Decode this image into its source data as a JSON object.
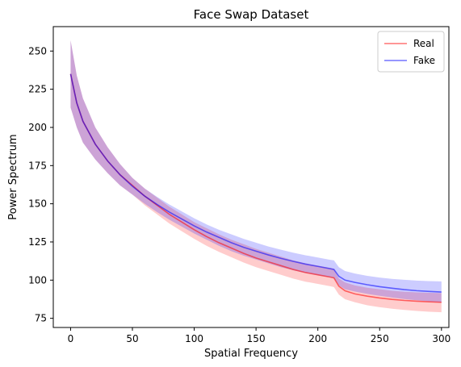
{
  "chart_data": {
    "type": "line",
    "title": "Face Swap Dataset",
    "xlabel": "Spatial Frequency",
    "ylabel": "Power Spectrum",
    "xlim": [
      -14,
      306
    ],
    "ylim": [
      69,
      266
    ],
    "xticks": [
      0,
      50,
      100,
      150,
      200,
      250,
      300
    ],
    "yticks": [
      75,
      100,
      125,
      150,
      175,
      200,
      225,
      250
    ],
    "grid": false,
    "legend_position": "top-right",
    "series": [
      {
        "name": "Real",
        "color": "#ff0000",
        "x": [
          0,
          5,
          10,
          20,
          30,
          40,
          50,
          60,
          70,
          80,
          90,
          100,
          110,
          120,
          130,
          140,
          150,
          160,
          170,
          180,
          190,
          200,
          210,
          213,
          217,
          222,
          230,
          240,
          250,
          260,
          270,
          280,
          290,
          300
        ],
        "mean": [
          235,
          216,
          204,
          189,
          178,
          169,
          162,
          155,
          149,
          143,
          138,
          133,
          128.5,
          124.5,
          121,
          117.5,
          114.5,
          112,
          109.5,
          107,
          105,
          103.5,
          102,
          101.5,
          96,
          93,
          91,
          89.5,
          88.3,
          87.4,
          86.7,
          86.2,
          85.8,
          85.5
        ],
        "upper": [
          257,
          234,
          219,
          200,
          187,
          176,
          167,
          160,
          154,
          148,
          143,
          138,
          134,
          130,
          126.5,
          123.5,
          120.5,
          118,
          115.5,
          113,
          111,
          109.5,
          108,
          107.5,
          101,
          98.5,
          96.5,
          95,
          94,
          93,
          92.4,
          92,
          91.7,
          91.5
        ],
        "lower": [
          213,
          200,
          190,
          179,
          170,
          162,
          156,
          149,
          143,
          137,
          132,
          127,
          122.5,
          118.5,
          115,
          111.5,
          108.5,
          106,
          103.5,
          101,
          99,
          97.5,
          96,
          95.5,
          90.5,
          87.5,
          85.5,
          83.5,
          82.3,
          81.3,
          80.5,
          79.8,
          79.3,
          79
        ]
      },
      {
        "name": "Fake",
        "color": "#0000ff",
        "x": [
          0,
          5,
          10,
          20,
          30,
          40,
          50,
          60,
          70,
          80,
          90,
          100,
          110,
          120,
          130,
          140,
          150,
          160,
          170,
          180,
          190,
          200,
          210,
          213,
          217,
          222,
          230,
          240,
          250,
          260,
          270,
          280,
          290,
          300
        ],
        "mean": [
          235,
          216,
          204,
          189,
          178,
          169,
          161.5,
          155,
          149.5,
          144.5,
          140,
          135.5,
          131.5,
          128,
          124.5,
          121.5,
          119,
          116.5,
          114.3,
          112.3,
          110.5,
          109,
          107.5,
          107,
          102.5,
          100,
          98.5,
          97,
          95.7,
          94.7,
          93.8,
          93.1,
          92.6,
          92.2
        ],
        "upper": [
          257,
          234,
          219,
          200,
          187,
          176,
          167,
          160,
          154.5,
          149.5,
          145,
          140.5,
          136.5,
          133,
          130,
          127,
          124.5,
          122,
          120,
          118,
          116.3,
          114.8,
          113.3,
          113,
          108.5,
          106,
          104.3,
          102.8,
          101.7,
          100.8,
          100.2,
          99.7,
          99.4,
          99.2
        ],
        "lower": [
          213,
          200,
          190,
          179,
          170,
          162,
          156,
          150,
          144.5,
          139.5,
          135,
          130.5,
          126.5,
          122.5,
          119,
          116,
          113.5,
          111,
          108.5,
          106.5,
          104.7,
          103.2,
          101.8,
          101.3,
          96.5,
          94,
          92.5,
          91,
          89.7,
          88.6,
          87.6,
          86.8,
          86,
          85.3
        ]
      }
    ]
  }
}
